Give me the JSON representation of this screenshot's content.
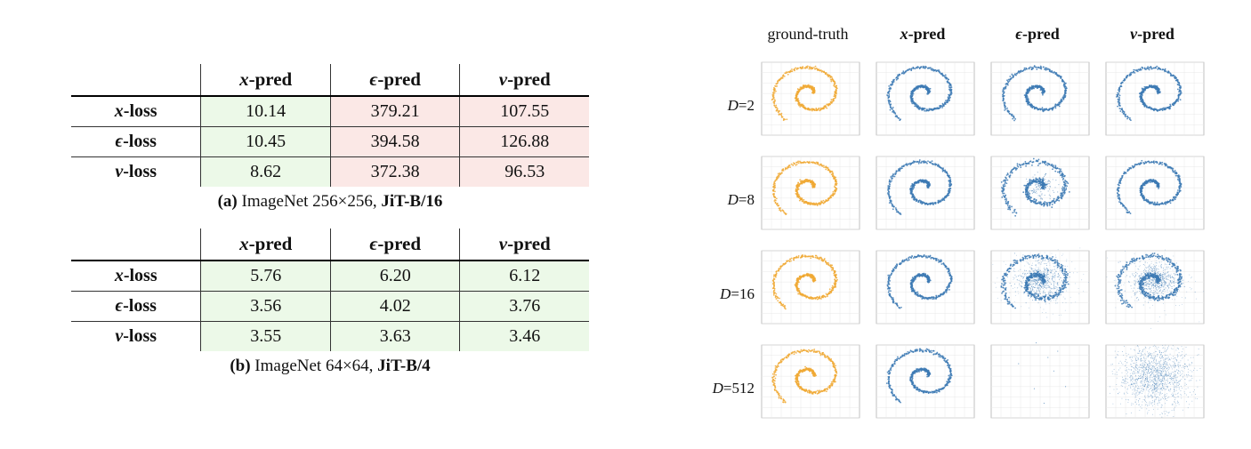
{
  "table_a": {
    "columns": [
      "x-pred",
      "ϵ-pred",
      "v-pred"
    ],
    "rows": [
      {
        "label": "x-loss",
        "values": [
          "10.14",
          "379.21",
          "107.55"
        ]
      },
      {
        "label": "ϵ-loss",
        "values": [
          "10.45",
          "394.58",
          "126.88"
        ]
      },
      {
        "label": "v-loss",
        "values": [
          "8.62",
          "372.38",
          "96.53"
        ]
      }
    ],
    "caption_tag": "(a)",
    "caption_text": " ImageNet 256×256, ",
    "caption_model": "JiT-B/16"
  },
  "table_b": {
    "columns": [
      "x-pred",
      "ϵ-pred",
      "v-pred"
    ],
    "rows": [
      {
        "label": "x-loss",
        "values": [
          "5.76",
          "6.20",
          "6.12"
        ]
      },
      {
        "label": "ϵ-loss",
        "values": [
          "3.56",
          "4.02",
          "3.76"
        ]
      },
      {
        "label": "v-loss",
        "values": [
          "3.55",
          "3.63",
          "3.46"
        ]
      }
    ],
    "caption_tag": "(b)",
    "caption_text": " ImageNet 64×64, ",
    "caption_model": "JiT-B/4"
  },
  "figure": {
    "col_headers": [
      "ground-truth",
      "x-pred",
      "ϵ-pred",
      "v-pred"
    ],
    "row_labels": [
      "D=2",
      "D=8",
      "D=16",
      "D=512"
    ],
    "colors": {
      "ground_truth": "#f0a935",
      "prediction": "#3d7ab4"
    }
  }
}
